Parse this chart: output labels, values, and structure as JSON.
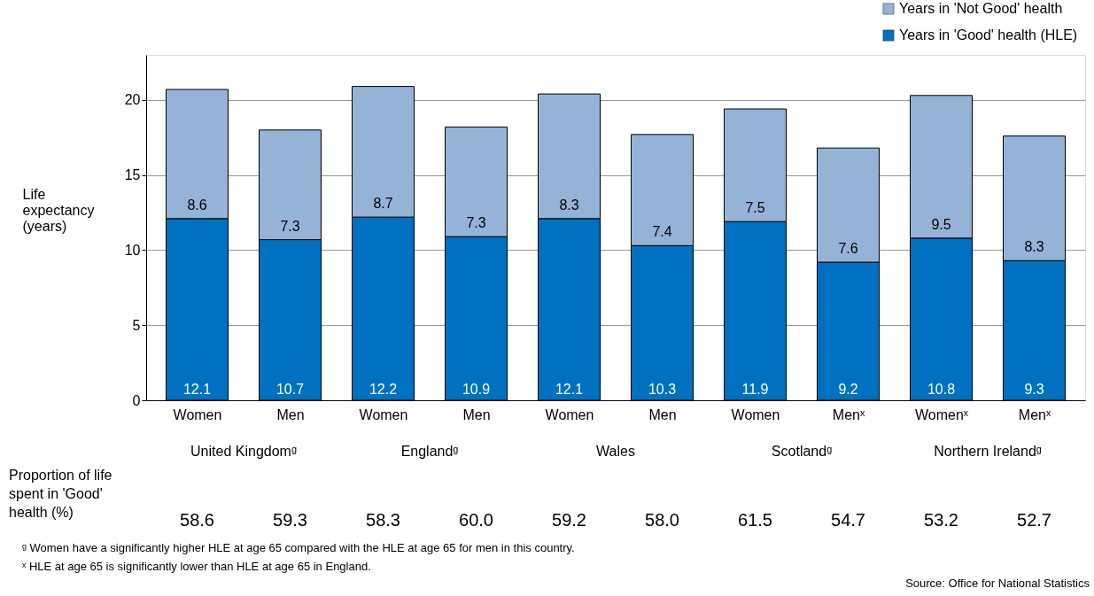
{
  "chart_data": {
    "type": "bar",
    "stacked": true,
    "ylabel": "Life expectancy (years)",
    "categories": [
      "Women",
      "Men",
      "Women",
      "Men",
      "Women",
      "Men",
      "Women",
      "Menˣ",
      "Womenˣ",
      "Menˣ"
    ],
    "series": [
      {
        "name": "Years in 'Good' health (HLE)",
        "color": "#0070c0",
        "values": [
          12.1,
          10.7,
          12.2,
          10.9,
          12.1,
          10.3,
          11.9,
          9.2,
          10.8,
          9.3
        ]
      },
      {
        "name": "Years in 'Not Good' health",
        "color": "#95b3d7",
        "values": [
          8.6,
          7.3,
          8.7,
          7.3,
          8.3,
          7.4,
          7.5,
          7.6,
          9.5,
          8.3
        ]
      }
    ],
    "ylim": [
      0,
      23
    ],
    "yticks": [
      0,
      5,
      10,
      15,
      20
    ],
    "grid": "y",
    "legend": "top right",
    "data_labels": true,
    "annotations": [
      "United Kingdomᵍ",
      "Englandᵍ",
      "Wales",
      "Scotlandᵍ",
      "Northern Irelandᵍ",
      "Proportion of life spent in 'Good' health (%)",
      "58.6",
      "59.3",
      "58.3",
      "60.0",
      "59.2",
      "58.0",
      "61.5",
      "54.7",
      "53.2",
      "52.7",
      "ᵍ Women have a significantly higher HLE at age 65 compared with the HLE at age 65 for men in this country.",
      "ˣ HLE at age 65  is significantly lower than HLE at age 65 in England.",
      "Source: Office for National Statistics"
    ]
  }
}
